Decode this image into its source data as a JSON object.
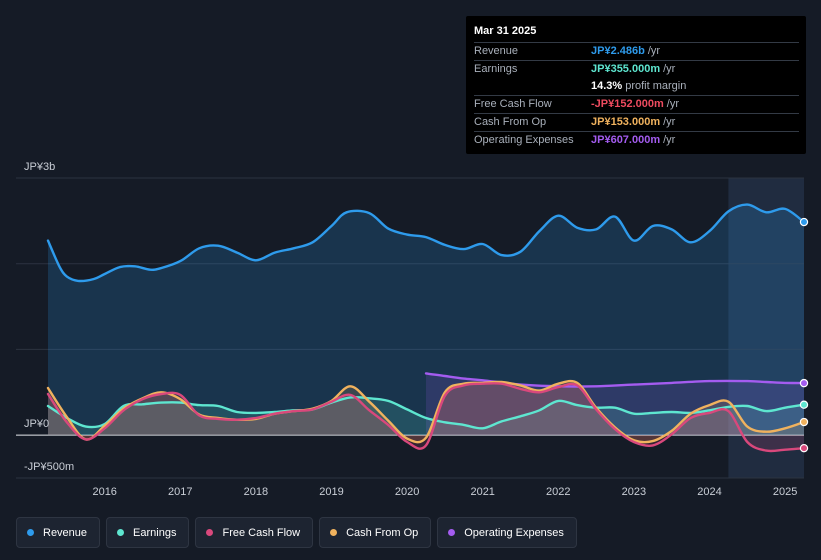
{
  "tooltip": {
    "date": "Mar 31 2025",
    "rows": [
      {
        "label": "Revenue",
        "value": "JP¥2.486b",
        "unit": "/yr",
        "color": "#2e9bec"
      },
      {
        "label": "Earnings",
        "value": "JP¥355.000m",
        "unit": "/yr",
        "color": "#5ee6d0"
      },
      {
        "label": "",
        "value": "14.3%",
        "unit": "profit margin",
        "color": "#ffffff"
      },
      {
        "label": "Free Cash Flow",
        "value": "-JP¥152.000m",
        "unit": "/yr",
        "color": "#ee4b5f"
      },
      {
        "label": "Cash From Op",
        "value": "JP¥153.000m",
        "unit": "/yr",
        "color": "#f0b25e"
      },
      {
        "label": "Operating Expenses",
        "value": "JP¥607.000m",
        "unit": "/yr",
        "color": "#a45cf0"
      }
    ]
  },
  "legend": [
    {
      "label": "Revenue",
      "color": "#2e9bec"
    },
    {
      "label": "Earnings",
      "color": "#5ee6d0"
    },
    {
      "label": "Free Cash Flow",
      "color": "#d9487c"
    },
    {
      "label": "Cash From Op",
      "color": "#f0b25e"
    },
    {
      "label": "Operating Expenses",
      "color": "#a45cf0"
    }
  ],
  "chart_data": {
    "type": "area",
    "title": "",
    "units": "JP¥",
    "y_tick_labels": [
      "JP¥3b",
      "JP¥0",
      "-JP¥500m"
    ],
    "ylim": [
      -500,
      3000
    ],
    "xlim": [
      2015.25,
      2025.25
    ],
    "x_tick_labels": [
      "2016",
      "2017",
      "2018",
      "2019",
      "2020",
      "2021",
      "2022",
      "2023",
      "2024",
      "2025"
    ],
    "x_ticks": [
      2016,
      2017,
      2018,
      2019,
      2020,
      2021,
      2022,
      2023,
      2024,
      2025
    ],
    "forecast_start": 2024.25,
    "series": [
      {
        "name": "Revenue",
        "color": "#2e9bec",
        "x": [
          2015.25,
          2015.4,
          2015.5,
          2015.65,
          2015.85,
          2016.0,
          2016.2,
          2016.4,
          2016.6,
          2016.75,
          2017.0,
          2017.25,
          2017.5,
          2017.75,
          2018.0,
          2018.25,
          2018.5,
          2018.75,
          2019.0,
          2019.2,
          2019.5,
          2019.75,
          2020.0,
          2020.25,
          2020.5,
          2020.75,
          2021.0,
          2021.25,
          2021.5,
          2021.75,
          2022.0,
          2022.25,
          2022.5,
          2022.75,
          2023.0,
          2023.25,
          2023.5,
          2023.75,
          2024.0,
          2024.25,
          2024.5,
          2024.75,
          2025.0,
          2025.25
        ],
        "values": [
          2270,
          1970,
          1850,
          1800,
          1820,
          1880,
          1960,
          1970,
          1930,
          1950,
          2030,
          2180,
          2210,
          2130,
          2040,
          2130,
          2180,
          2250,
          2440,
          2600,
          2590,
          2410,
          2340,
          2310,
          2220,
          2170,
          2230,
          2100,
          2140,
          2380,
          2560,
          2420,
          2400,
          2550,
          2270,
          2440,
          2400,
          2250,
          2380,
          2610,
          2690,
          2600,
          2640,
          2486
        ]
      },
      {
        "name": "Earnings",
        "color": "#5ee6d0",
        "x": [
          2015.25,
          2015.5,
          2015.75,
          2016.0,
          2016.25,
          2016.5,
          2016.75,
          2017.0,
          2017.25,
          2017.5,
          2017.75,
          2018.0,
          2018.25,
          2018.5,
          2018.75,
          2019.0,
          2019.25,
          2019.5,
          2019.75,
          2020.0,
          2020.25,
          2020.5,
          2020.75,
          2021.0,
          2021.25,
          2021.5,
          2021.75,
          2022.0,
          2022.25,
          2022.5,
          2022.75,
          2023.0,
          2023.25,
          2023.5,
          2023.75,
          2024.0,
          2024.25,
          2024.5,
          2024.75,
          2025.0,
          2025.25
        ],
        "values": [
          340,
          200,
          100,
          130,
          340,
          360,
          380,
          380,
          350,
          340,
          270,
          260,
          270,
          290,
          300,
          380,
          440,
          430,
          400,
          300,
          200,
          150,
          120,
          80,
          160,
          220,
          290,
          400,
          350,
          320,
          320,
          250,
          260,
          270,
          260,
          290,
          330,
          340,
          280,
          320,
          355
        ]
      },
      {
        "name": "Free Cash Flow",
        "color": "#d9487c",
        "x": [
          2015.25,
          2015.5,
          2015.75,
          2016.0,
          2016.25,
          2016.5,
          2016.75,
          2017.0,
          2017.25,
          2017.5,
          2017.75,
          2018.0,
          2018.25,
          2018.5,
          2018.75,
          2019.0,
          2019.25,
          2019.5,
          2019.75,
          2020.0,
          2020.25,
          2020.5,
          2020.75,
          2021.0,
          2021.25,
          2021.5,
          2021.75,
          2022.0,
          2022.25,
          2022.5,
          2022.75,
          2023.0,
          2023.25,
          2023.5,
          2023.75,
          2024.0,
          2024.25,
          2024.5,
          2024.75,
          2025.0,
          2025.25
        ],
        "values": [
          480,
          150,
          -50,
          80,
          290,
          420,
          480,
          470,
          230,
          190,
          180,
          200,
          250,
          280,
          300,
          390,
          470,
          290,
          120,
          -80,
          -120,
          460,
          580,
          600,
          600,
          540,
          500,
          560,
          580,
          300,
          70,
          -80,
          -120,
          10,
          200,
          260,
          280,
          -80,
          -180,
          -170,
          -152
        ]
      },
      {
        "name": "Cash From Op",
        "color": "#f0b25e",
        "x": [
          2015.25,
          2015.5,
          2015.75,
          2016.0,
          2016.25,
          2016.5,
          2016.75,
          2017.0,
          2017.25,
          2017.5,
          2017.75,
          2018.0,
          2018.25,
          2018.5,
          2018.75,
          2019.0,
          2019.25,
          2019.5,
          2019.75,
          2020.0,
          2020.25,
          2020.5,
          2020.75,
          2021.0,
          2021.25,
          2021.5,
          2021.75,
          2022.0,
          2022.25,
          2022.5,
          2022.75,
          2023.0,
          2023.25,
          2023.5,
          2023.75,
          2024.0,
          2024.25,
          2024.5,
          2024.75,
          2025.0,
          2025.25
        ],
        "values": [
          550,
          210,
          -50,
          110,
          310,
          430,
          500,
          420,
          240,
          200,
          180,
          190,
          250,
          280,
          310,
          400,
          570,
          390,
          170,
          -40,
          -30,
          500,
          600,
          610,
          620,
          580,
          520,
          600,
          610,
          320,
          90,
          -60,
          -70,
          50,
          250,
          350,
          390,
          100,
          40,
          80,
          153
        ]
      },
      {
        "name": "Operating Expenses",
        "color": "#a45cf0",
        "x": [
          2020.25,
          2020.5,
          2020.75,
          2021.0,
          2021.5,
          2022.0,
          2022.5,
          2023.0,
          2023.5,
          2024.0,
          2024.5,
          2024.75,
          2025.0,
          2025.25
        ],
        "values": [
          720,
          690,
          660,
          640,
          590,
          570,
          570,
          590,
          610,
          630,
          630,
          620,
          610,
          607
        ]
      }
    ]
  }
}
